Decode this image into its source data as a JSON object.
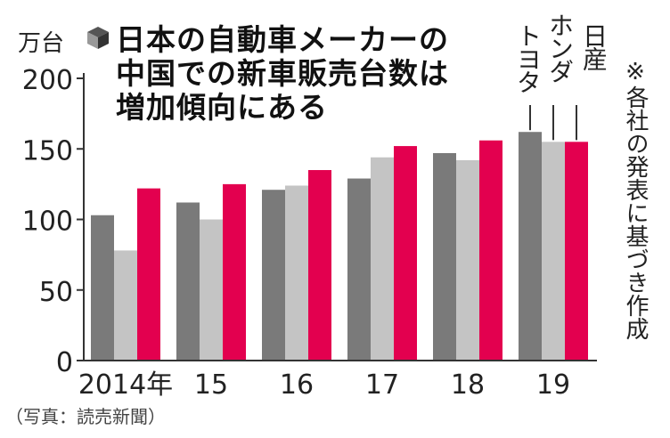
{
  "header": {
    "unit": "万台",
    "title_lines": [
      "日本の自動車メーカーの",
      "中国での新車販売台数は",
      "増加傾向にある"
    ]
  },
  "note": "※各社の発表に基づき作成",
  "source": "（写真：読売新聞）",
  "colors": {
    "toyota": "#7a7a7a",
    "honda": "#c4c4c4",
    "nissan": "#e3004f",
    "axis": "#333333"
  },
  "chart_data": {
    "type": "bar",
    "title": "日本の自動車メーカーの中国での新車販売台数は増加傾向にある",
    "ylabel": "万台",
    "ylim": [
      0,
      200
    ],
    "yticks": [
      0,
      50,
      100,
      150,
      200
    ],
    "categories": [
      "2014年",
      "15",
      "16",
      "17",
      "18",
      "19"
    ],
    "series": [
      {
        "name": "トヨタ",
        "values": [
          103,
          112,
          121,
          129,
          147,
          162
        ]
      },
      {
        "name": "ホンダ",
        "values": [
          78,
          100,
          124,
          144,
          142,
          155
        ]
      },
      {
        "name": "日産",
        "values": [
          122,
          125,
          135,
          152,
          156,
          155
        ]
      }
    ],
    "grid": false,
    "legend": "top-right (vertical labels)"
  }
}
